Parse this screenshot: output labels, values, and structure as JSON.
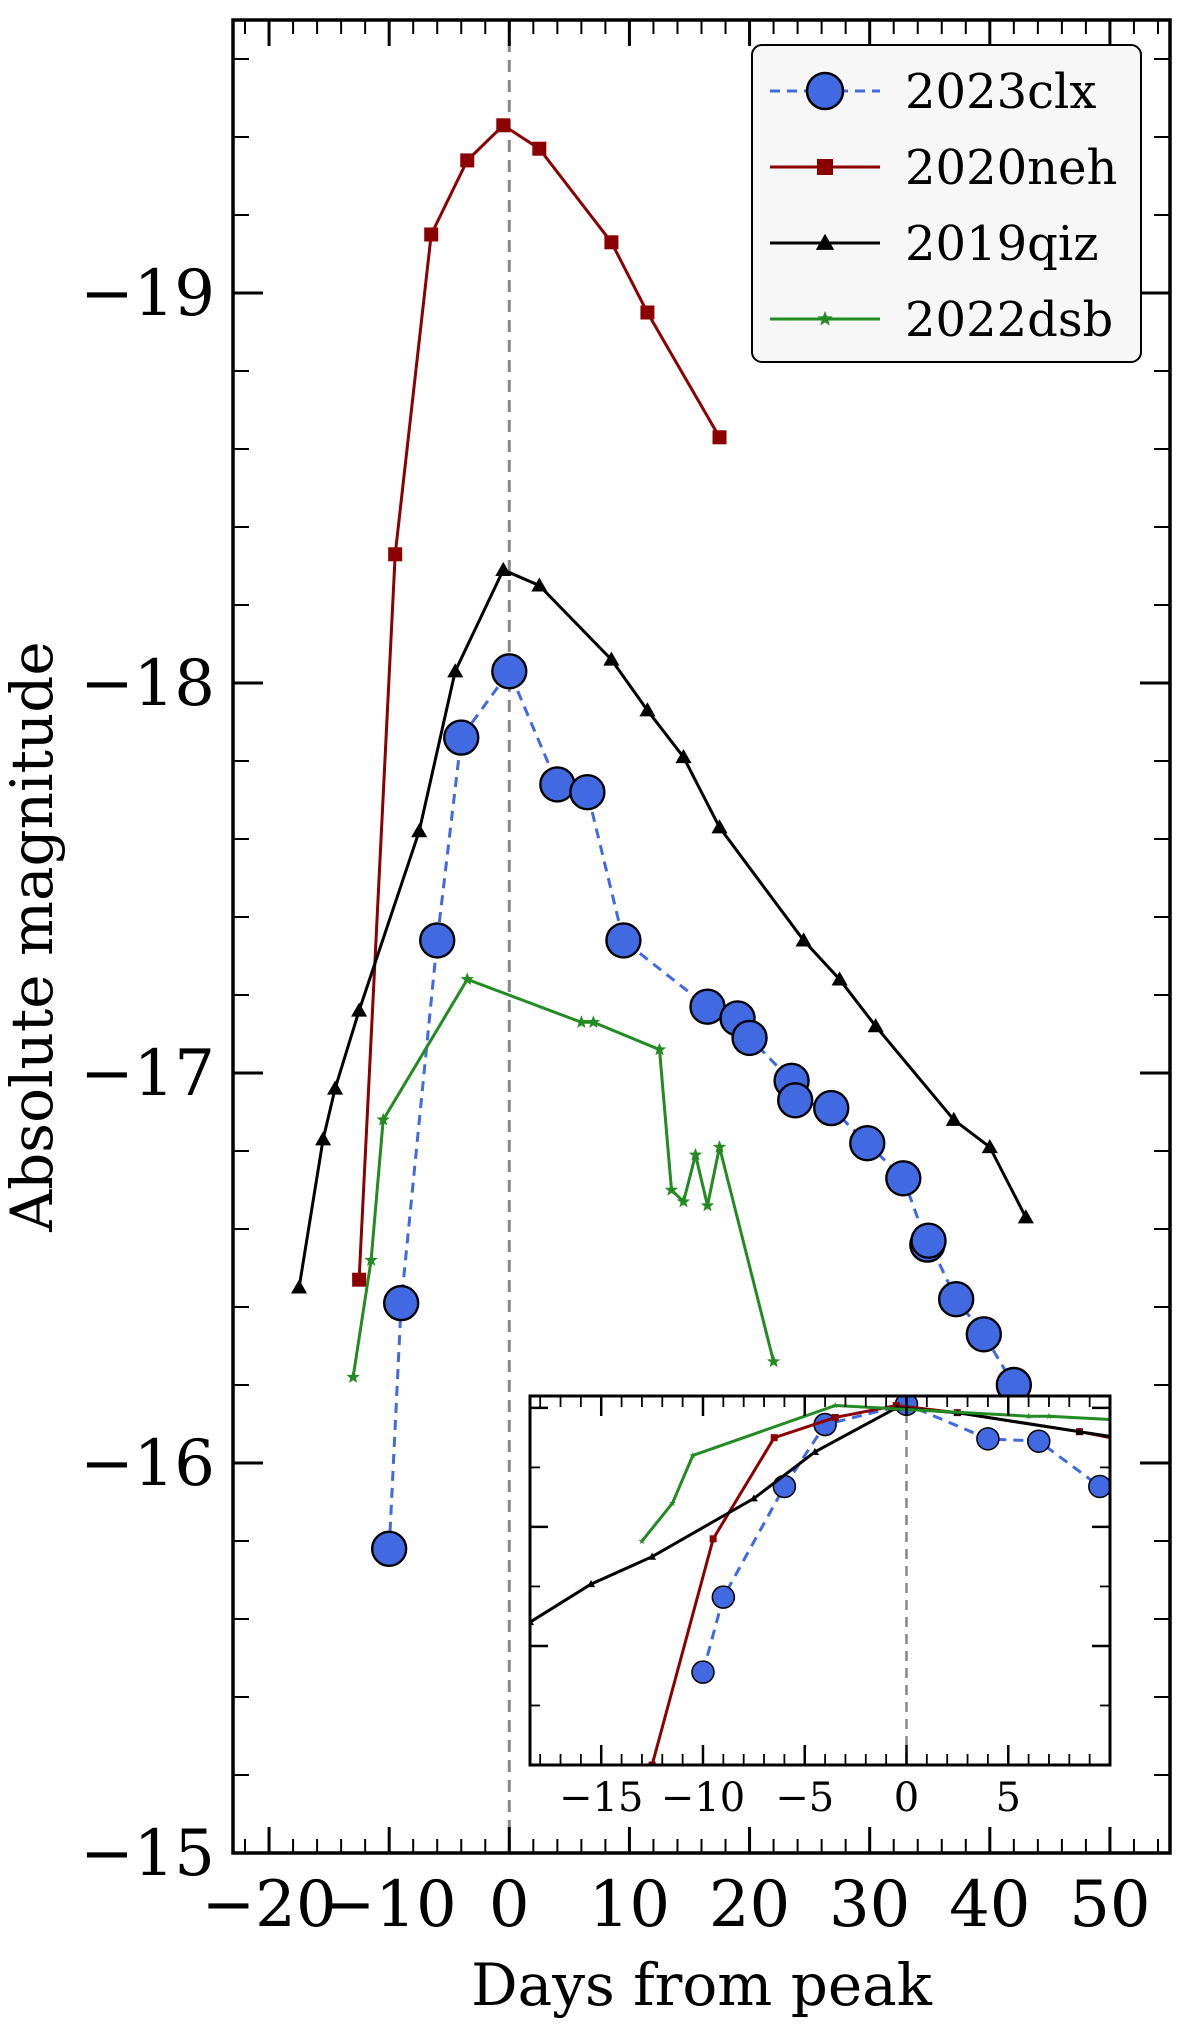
{
  "chart_data": [
    {
      "type": "line",
      "xlabel": "Days from peak",
      "ylabel": "Absolute magnitude",
      "xlim": [
        -23,
        55
      ],
      "ylim": [
        -15,
        -19.7
      ],
      "y_inverted": true,
      "x_ticks": [
        "−20",
        "−10",
        "0",
        "10",
        "20",
        "30",
        "40",
        "50"
      ],
      "y_ticks": [
        "−15",
        "−16",
        "−17",
        "−18",
        "−19"
      ],
      "peak_line_x": 0,
      "legend_position": "top-right",
      "series": [
        {
          "name": "2023clx",
          "color": "#4169e1",
          "marker": "circle",
          "linestyle": "dashed",
          "x": [
            -10,
            -9,
            -6,
            -4,
            0,
            4,
            6.5,
            9.5,
            16.5,
            19,
            20,
            23.5,
            23.8,
            26.8,
            29.8,
            32.8,
            34.8,
            34.9,
            37.2,
            39.5,
            42
          ],
          "y": [
            -15.78,
            -16.41,
            -17.34,
            -17.86,
            -18.03,
            -17.74,
            -17.72,
            -17.34,
            -17.17,
            -17.14,
            -17.09,
            -16.98,
            -16.93,
            -16.91,
            -16.82,
            -16.73,
            -16.56,
            -16.57,
            -16.42,
            -16.33,
            -16.2
          ]
        },
        {
          "name": "2020neh",
          "color": "#8b0000",
          "marker": "square",
          "linestyle": "solid",
          "x": [
            -12.5,
            -9.5,
            -6.5,
            -3.5,
            -0.5,
            2.5,
            8.5,
            11.5,
            17.5
          ],
          "y": [
            -16.47,
            -18.33,
            -19.15,
            -19.34,
            -19.43,
            -19.37,
            -19.13,
            -18.95,
            -18.63
          ]
        },
        {
          "name": "2019qiz",
          "color": "#000000",
          "marker": "triangle",
          "linestyle": "solid",
          "x": [
            -17.5,
            -15.5,
            -14.5,
            -12.5,
            -7.5,
            -4.5,
            -0.5,
            2.5,
            8.5,
            11.5,
            14.5,
            17.5,
            24.5,
            27.5,
            30.5,
            37,
            40,
            43
          ],
          "y": [
            -16.45,
            -16.83,
            -16.96,
            -17.16,
            -17.62,
            -18.03,
            -18.29,
            -18.25,
            -18.06,
            -17.93,
            -17.81,
            -17.63,
            -17.34,
            -17.24,
            -17.12,
            -16.88,
            -16.81,
            -16.63
          ]
        },
        {
          "name": "2022dsb",
          "color": "#228b22",
          "marker": "star",
          "linestyle": "solid",
          "x": [
            -13,
            -11.5,
            -10.5,
            -3.5,
            6,
            7,
            12.5,
            13.5,
            14.5,
            15.5,
            16.5,
            17.5,
            22
          ],
          "y": [
            -16.22,
            -16.52,
            -16.88,
            -17.24,
            -17.13,
            -17.13,
            -17.06,
            -16.7,
            -16.67,
            -16.79,
            -16.66,
            -16.81,
            -16.26
          ]
        }
      ]
    },
    {
      "type": "line",
      "inset": true,
      "xlim": [
        -18.5,
        10
      ],
      "x_ticks": [
        "−15",
        "−10",
        "−5",
        "0",
        "5"
      ],
      "peak_line_x": 0,
      "series": [
        {
          "name": "2023clx",
          "color": "#4169e1",
          "marker": "circle",
          "linestyle": "dashed",
          "x": [
            -10,
            -9,
            -6,
            -4,
            0,
            4,
            6.5,
            9.5
          ],
          "y": [
            -15.78,
            -16.41,
            -17.34,
            -17.86,
            -18.03,
            -17.74,
            -17.72,
            -17.34
          ]
        },
        {
          "name": "2020neh",
          "color": "#8b0000",
          "marker": "square",
          "linestyle": "solid",
          "x": [
            -12.5,
            -9.5,
            -6.5,
            -3.5,
            -0.5,
            2.5,
            8.5,
            11.5
          ],
          "y": [
            -15.0,
            -16.9,
            -17.75,
            -17.92,
            -18.02,
            -17.96,
            -17.8,
            -17.7
          ]
        },
        {
          "name": "2019qiz",
          "color": "#000000",
          "marker": "triangle",
          "linestyle": "solid",
          "x": [
            -18.5,
            -15.5,
            -12.5,
            -7.5,
            -4.5,
            -0.5,
            2.5,
            8.5,
            11.5
          ],
          "y": [
            -16.2,
            -16.52,
            -16.75,
            -17.24,
            -17.63,
            -18.0,
            -17.96,
            -17.8,
            -17.72
          ]
        },
        {
          "name": "2022dsb",
          "color": "#228b22",
          "marker": "star",
          "linestyle": "solid",
          "x": [
            -13,
            -11.5,
            -10.5,
            -3.5,
            6,
            7,
            12.5
          ],
          "y": [
            -16.88,
            -17.2,
            -17.6,
            -18.02,
            -17.93,
            -17.93,
            -17.88
          ]
        }
      ]
    }
  ]
}
